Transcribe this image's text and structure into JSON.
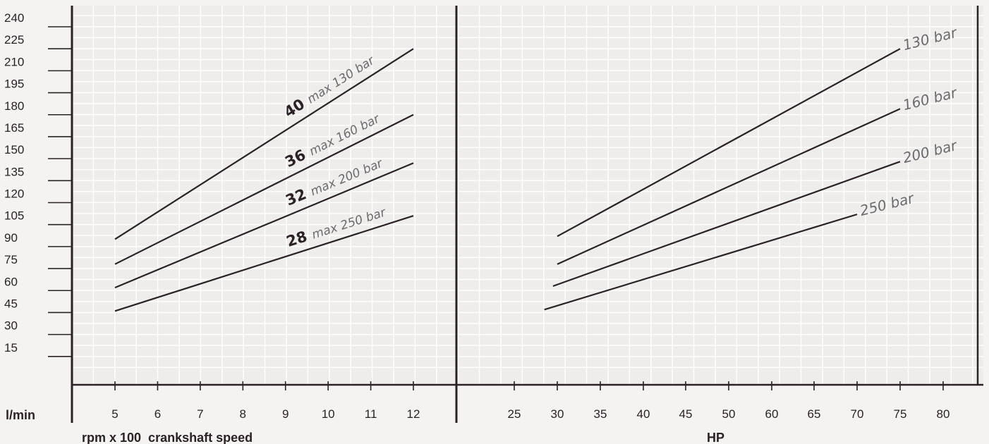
{
  "chart_data": {
    "type": "line",
    "ylabel": "l/min",
    "y_ticks": [
      "240",
      "225",
      "210",
      "195",
      "180",
      "165",
      "150",
      "135",
      "120",
      "105",
      "90",
      "75",
      "60",
      "45",
      "30",
      "15"
    ],
    "ylim": [
      0,
      240
    ],
    "panels": [
      {
        "name": "rpm",
        "xlabel": "rpm x 100  crankshaft speed",
        "x_ticks": [
          "5",
          "6",
          "7",
          "8",
          "9",
          "10",
          "11",
          "12"
        ],
        "series": [
          {
            "name": "40",
            "label": "max 130 bar",
            "x": [
              5,
              12
            ],
            "y": [
              95,
              225
            ]
          },
          {
            "name": "36",
            "label": "max 160 bar",
            "x": [
              5,
              12
            ],
            "y": [
              78,
              180
            ]
          },
          {
            "name": "32",
            "label": "max 200 bar",
            "x": [
              5,
              12
            ],
            "y": [
              62,
              147
            ]
          },
          {
            "name": "28",
            "label": "max 250 bar",
            "x": [
              5,
              12
            ],
            "y": [
              46,
              111
            ]
          }
        ]
      },
      {
        "name": "hp",
        "xlabel": "HP",
        "x_ticks": [
          "25",
          "30",
          "35",
          "40",
          "45",
          "50",
          "60",
          "65",
          "70",
          "75",
          "80"
        ],
        "series": [
          {
            "name": "130 bar",
            "x": [
              30,
              75
            ],
            "y": [
              97,
              225
            ]
          },
          {
            "name": "160 bar",
            "x": [
              30,
              75
            ],
            "y": [
              78,
              184
            ]
          },
          {
            "name": "200 bar",
            "x": [
              29.5,
              75
            ],
            "y": [
              63,
              148
            ]
          },
          {
            "name": "250 bar",
            "x": [
              28.5,
              70
            ],
            "y": [
              47,
              112
            ]
          }
        ]
      }
    ]
  },
  "colors": {
    "line": "#2a2226",
    "grid": "#ffffff",
    "label_grey": "#6b6a6e",
    "background": "#eeedeb"
  }
}
